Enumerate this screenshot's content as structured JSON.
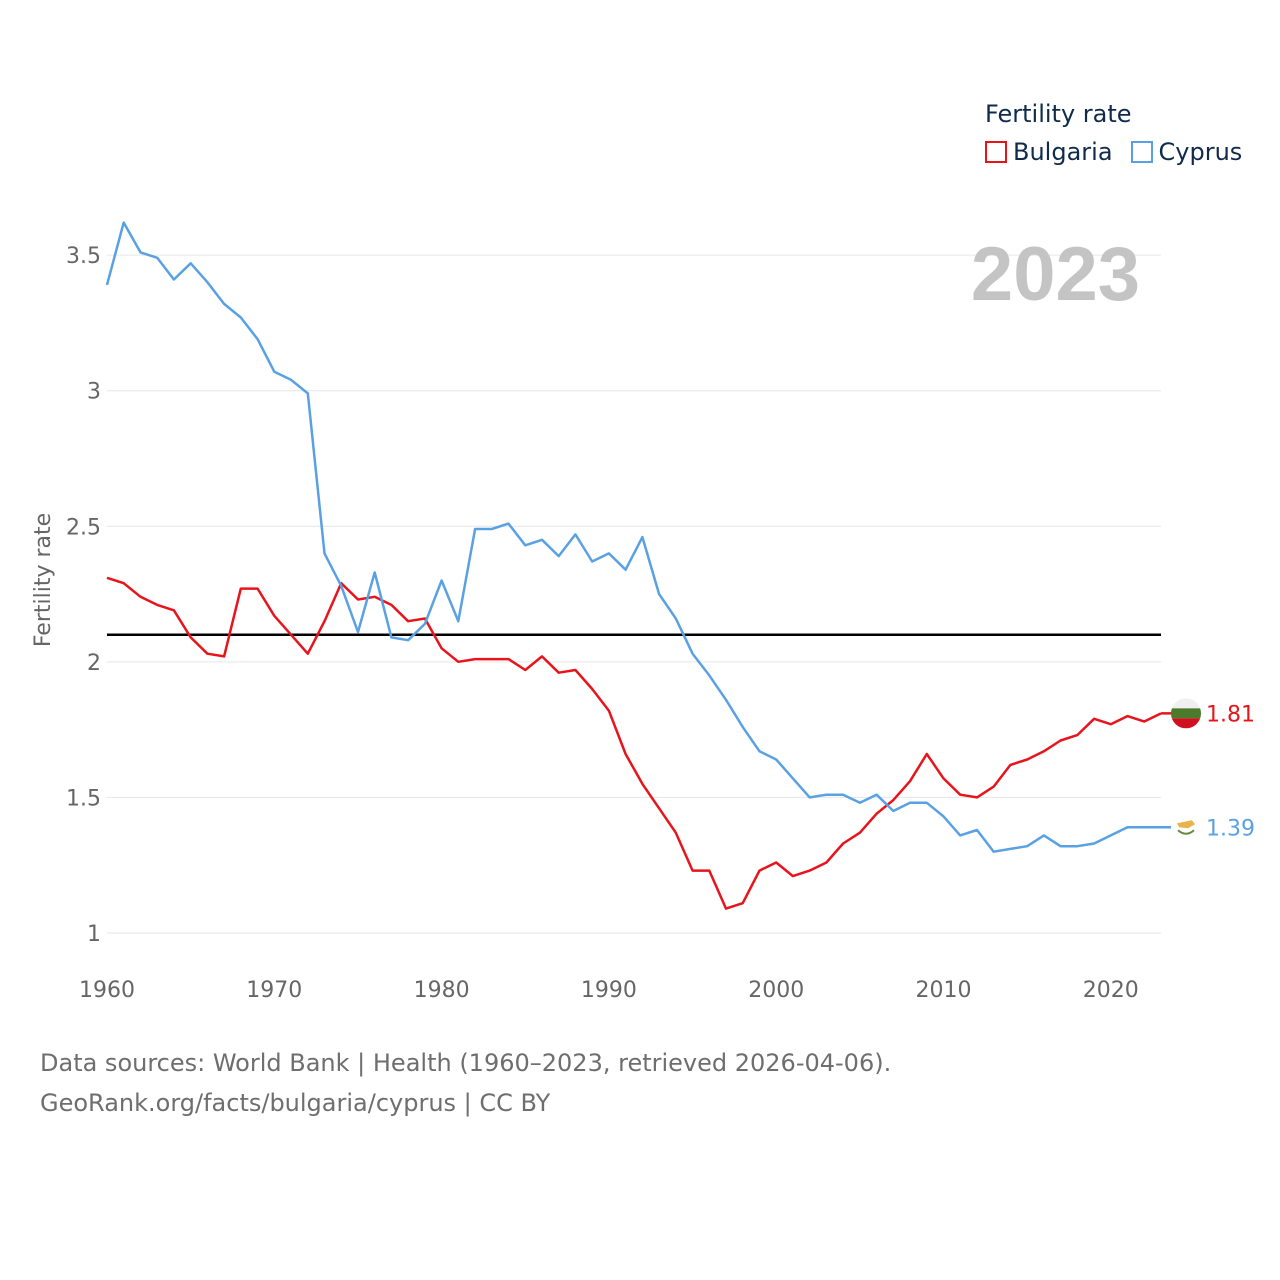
{
  "chart_data": {
    "type": "line",
    "title": "Fertility rate",
    "ylabel": "Fertility rate",
    "xlabel": "",
    "year_label": "2023",
    "xlim": [
      1960,
      2023
    ],
    "ylim": [
      1,
      3.6
    ],
    "x_ticks": [
      1960,
      1970,
      1980,
      1990,
      2000,
      2010,
      2020
    ],
    "y_ticks": [
      1,
      1.5,
      2,
      2.5,
      3,
      3.5
    ],
    "y_tick_labels": [
      "1",
      "1.5",
      "2",
      "2.5",
      "3",
      "3.5"
    ],
    "reference_line": {
      "value": 2.1,
      "color": "#000000"
    },
    "x": [
      1960,
      1961,
      1962,
      1963,
      1964,
      1965,
      1966,
      1967,
      1968,
      1969,
      1970,
      1971,
      1972,
      1973,
      1974,
      1975,
      1976,
      1977,
      1978,
      1979,
      1980,
      1981,
      1982,
      1983,
      1984,
      1985,
      1986,
      1987,
      1988,
      1989,
      1990,
      1991,
      1992,
      1993,
      1994,
      1995,
      1996,
      1997,
      1998,
      1999,
      2000,
      2001,
      2002,
      2003,
      2004,
      2005,
      2006,
      2007,
      2008,
      2009,
      2010,
      2011,
      2012,
      2013,
      2014,
      2015,
      2016,
      2017,
      2018,
      2019,
      2020,
      2021,
      2022,
      2023
    ],
    "series": [
      {
        "name": "Bulgaria",
        "color": "#e8141c",
        "end_label": "1.81",
        "values": [
          2.31,
          2.29,
          2.24,
          2.21,
          2.19,
          2.09,
          2.03,
          2.02,
          2.27,
          2.27,
          2.17,
          2.1,
          2.03,
          2.15,
          2.29,
          2.23,
          2.24,
          2.21,
          2.15,
          2.16,
          2.05,
          2.0,
          2.01,
          2.01,
          2.01,
          1.97,
          2.02,
          1.96,
          1.97,
          1.9,
          1.82,
          1.66,
          1.55,
          1.46,
          1.37,
          1.23,
          1.23,
          1.09,
          1.11,
          1.23,
          1.26,
          1.21,
          1.23,
          1.26,
          1.33,
          1.37,
          1.44,
          1.49,
          1.56,
          1.66,
          1.57,
          1.51,
          1.5,
          1.54,
          1.62,
          1.64,
          1.67,
          1.71,
          1.73,
          1.79,
          1.77,
          1.8,
          1.78,
          1.81
        ]
      },
      {
        "name": "Cyprus",
        "color": "#5aa1e3",
        "end_label": "1.39",
        "values": [
          3.39,
          3.62,
          3.51,
          3.49,
          3.41,
          3.47,
          3.4,
          3.32,
          3.27,
          3.19,
          3.07,
          3.04,
          2.99,
          2.4,
          2.28,
          2.11,
          2.33,
          2.09,
          2.08,
          2.14,
          2.3,
          2.15,
          2.49,
          2.49,
          2.51,
          2.43,
          2.45,
          2.39,
          2.47,
          2.37,
          2.4,
          2.34,
          2.46,
          2.25,
          2.16,
          2.03,
          1.95,
          1.86,
          1.76,
          1.67,
          1.64,
          1.57,
          1.5,
          1.51,
          1.51,
          1.48,
          1.51,
          1.45,
          1.48,
          1.48,
          1.43,
          1.36,
          1.38,
          1.3,
          1.31,
          1.32,
          1.36,
          1.32,
          1.32,
          1.33,
          1.36,
          1.39,
          1.39,
          1.39
        ]
      }
    ]
  },
  "footer": {
    "line1": "Data sources: World Bank | Health (1960–2023, retrieved 2026-04-06).",
    "line2": "GeoRank.org/facts/bulgaria/cyprus | CC BY"
  },
  "colors": {
    "grid": "#e6e6e6",
    "axis_text": "#666666",
    "year_watermark": "#c4c4c4",
    "bulgaria_flag_white": "#f0f0f0",
    "bulgaria_flag_green": "#4a7a2a",
    "bulgaria_flag_red": "#d01020",
    "cyprus_map": "#e8b34a",
    "cyprus_olive": "#6a8a3a"
  },
  "icons": {
    "bulgaria": "bulgaria-flag-icon",
    "cyprus": "cyprus-flag-icon"
  }
}
